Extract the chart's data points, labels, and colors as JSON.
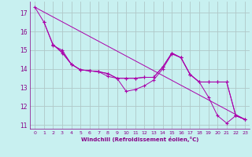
{
  "xlabel": "Windchill (Refroidissement éolien,°C)",
  "background_color": "#c8f0f0",
  "grid_color": "#b0c8c8",
  "line_color": "#aa00aa",
  "xlim": [
    -0.5,
    23.5
  ],
  "ylim": [
    10.8,
    17.6
  ],
  "yticks": [
    11,
    12,
    13,
    14,
    15,
    16,
    17
  ],
  "xticks": [
    0,
    1,
    2,
    3,
    4,
    5,
    6,
    7,
    8,
    9,
    10,
    11,
    12,
    13,
    14,
    15,
    16,
    17,
    18,
    19,
    20,
    21,
    22,
    23
  ],
  "series": [
    {
      "x": [
        0,
        1,
        2,
        3,
        4,
        5,
        6,
        7,
        8,
        9,
        10,
        11,
        12,
        13,
        14,
        15,
        16,
        17,
        18,
        19,
        20,
        21,
        22,
        23
      ],
      "y": [
        17.3,
        16.5,
        15.3,
        14.9,
        14.25,
        13.95,
        13.9,
        13.85,
        13.6,
        13.5,
        12.8,
        12.9,
        13.1,
        13.4,
        14.0,
        14.8,
        14.6,
        13.7,
        13.3,
        12.5,
        11.5,
        11.1,
        11.5,
        11.3
      ]
    },
    {
      "x": [
        1,
        2,
        3,
        4,
        5,
        6,
        7,
        8,
        9,
        10,
        11,
        12,
        13,
        14,
        15,
        16,
        17,
        18,
        19,
        20,
        21,
        22,
        23
      ],
      "y": [
        16.5,
        15.25,
        15.0,
        14.25,
        13.95,
        13.9,
        13.85,
        13.75,
        13.5,
        13.5,
        13.5,
        13.55,
        13.55,
        14.1,
        14.85,
        14.6,
        13.7,
        13.3,
        13.3,
        13.3,
        13.3,
        11.5,
        11.3
      ]
    },
    {
      "x": [
        2,
        3,
        4,
        5,
        6,
        7,
        8,
        9,
        10,
        11,
        12,
        13,
        14,
        15,
        16,
        17,
        18,
        19,
        20,
        21,
        22,
        23
      ],
      "y": [
        15.3,
        14.85,
        14.25,
        13.95,
        13.9,
        13.85,
        13.75,
        13.5,
        13.5,
        13.5,
        13.55,
        13.55,
        14.1,
        14.85,
        14.6,
        13.7,
        13.3,
        13.3,
        13.3,
        13.3,
        11.5,
        11.3
      ]
    },
    {
      "x": [
        0,
        23
      ],
      "y": [
        17.3,
        11.3
      ]
    }
  ]
}
